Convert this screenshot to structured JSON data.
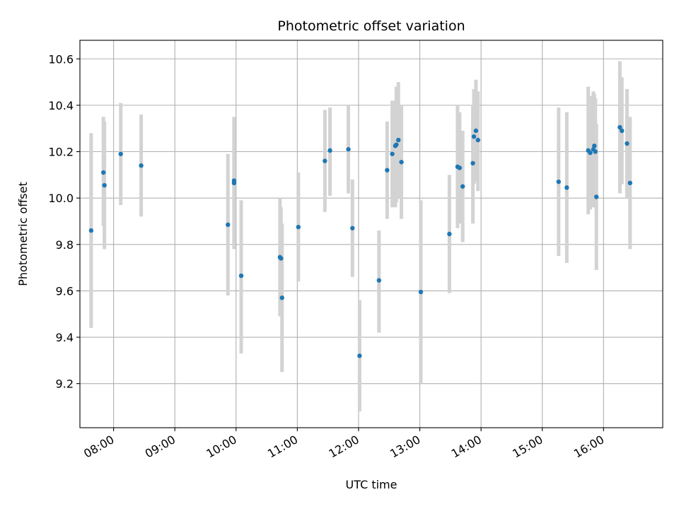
{
  "chart_data": {
    "type": "scatter",
    "title": "Photometric offset variation",
    "xlabel": "UTC time",
    "ylabel": "Photometric offset",
    "xlim": [
      "07:27",
      "16:58"
    ],
    "ylim": [
      9.01,
      10.68
    ],
    "x_ticks": [
      "08:00",
      "09:00",
      "10:00",
      "11:00",
      "12:00",
      "13:00",
      "14:00",
      "15:00",
      "16:00"
    ],
    "y_ticks": [
      9.2,
      9.4,
      9.6,
      9.8,
      10.0,
      10.2,
      10.4,
      10.6
    ],
    "grid": true,
    "point_color": "#1f77b4",
    "errorbar_color": "#d3d3d3",
    "points": [
      {
        "x": "07:38",
        "y": 9.86,
        "ylow": 9.44,
        "yhigh": 10.28
      },
      {
        "x": "07:50",
        "y": 10.11,
        "ylow": 9.88,
        "yhigh": 10.35
      },
      {
        "x": "07:51",
        "y": 10.055,
        "ylow": 9.78,
        "yhigh": 10.33
      },
      {
        "x": "08:07",
        "y": 10.19,
        "ylow": 9.97,
        "yhigh": 10.41
      },
      {
        "x": "08:27",
        "y": 10.14,
        "ylow": 9.92,
        "yhigh": 10.36
      },
      {
        "x": "09:52",
        "y": 9.885,
        "ylow": 9.58,
        "yhigh": 10.19
      },
      {
        "x": "09:58",
        "y": 10.065,
        "ylow": 9.78,
        "yhigh": 10.34
      },
      {
        "x": "09:58",
        "y": 10.075,
        "ylow": 9.81,
        "yhigh": 10.35
      },
      {
        "x": "10:05",
        "y": 9.665,
        "ylow": 9.33,
        "yhigh": 9.99
      },
      {
        "x": "10:43",
        "y": 9.745,
        "ylow": 9.49,
        "yhigh": 10.0
      },
      {
        "x": "10:44",
        "y": 9.74,
        "ylow": 9.52,
        "yhigh": 9.96
      },
      {
        "x": "10:45",
        "y": 9.57,
        "ylow": 9.25,
        "yhigh": 9.89
      },
      {
        "x": "11:01",
        "y": 9.875,
        "ylow": 9.64,
        "yhigh": 10.11
      },
      {
        "x": "11:27",
        "y": 10.16,
        "ylow": 9.94,
        "yhigh": 10.38
      },
      {
        "x": "11:32",
        "y": 10.205,
        "ylow": 10.01,
        "yhigh": 10.39
      },
      {
        "x": "11:50",
        "y": 10.21,
        "ylow": 10.02,
        "yhigh": 10.4
      },
      {
        "x": "11:54",
        "y": 9.87,
        "ylow": 9.66,
        "yhigh": 10.08
      },
      {
        "x": "12:01",
        "y": 9.32,
        "ylow": 9.08,
        "yhigh": 9.56
      },
      {
        "x": "12:20",
        "y": 9.645,
        "ylow": 9.42,
        "yhigh": 9.86
      },
      {
        "x": "12:28",
        "y": 10.12,
        "ylow": 9.91,
        "yhigh": 10.33
      },
      {
        "x": "12:33",
        "y": 10.19,
        "ylow": 9.96,
        "yhigh": 10.42
      },
      {
        "x": "12:36",
        "y": 10.225,
        "ylow": 9.96,
        "yhigh": 10.42
      },
      {
        "x": "12:37",
        "y": 10.23,
        "ylow": 9.98,
        "yhigh": 10.48
      },
      {
        "x": "12:39",
        "y": 10.25,
        "ylow": 10.0,
        "yhigh": 10.5
      },
      {
        "x": "12:42",
        "y": 10.155,
        "ylow": 9.91,
        "yhigh": 10.4
      },
      {
        "x": "13:01",
        "y": 9.595,
        "ylow": 9.2,
        "yhigh": 9.99
      },
      {
        "x": "13:29",
        "y": 9.845,
        "ylow": 9.59,
        "yhigh": 10.1
      },
      {
        "x": "13:37",
        "y": 10.135,
        "ylow": 9.87,
        "yhigh": 10.4
      },
      {
        "x": "13:39",
        "y": 10.13,
        "ylow": 9.89,
        "yhigh": 10.37
      },
      {
        "x": "13:42",
        "y": 10.05,
        "ylow": 9.81,
        "yhigh": 10.29
      },
      {
        "x": "13:52",
        "y": 10.15,
        "ylow": 9.89,
        "yhigh": 10.4
      },
      {
        "x": "13:53",
        "y": 10.265,
        "ylow": 10.06,
        "yhigh": 10.47
      },
      {
        "x": "13:55",
        "y": 10.29,
        "ylow": 10.07,
        "yhigh": 10.51
      },
      {
        "x": "13:57",
        "y": 10.25,
        "ylow": 10.03,
        "yhigh": 10.46
      },
      {
        "x": "15:16",
        "y": 10.07,
        "ylow": 9.75,
        "yhigh": 10.39
      },
      {
        "x": "15:24",
        "y": 10.045,
        "ylow": 9.72,
        "yhigh": 10.37
      },
      {
        "x": "15:45",
        "y": 10.205,
        "ylow": 9.93,
        "yhigh": 10.48
      },
      {
        "x": "15:47",
        "y": 10.195,
        "ylow": 9.95,
        "yhigh": 10.44
      },
      {
        "x": "15:50",
        "y": 10.21,
        "ylow": 9.96,
        "yhigh": 10.46
      },
      {
        "x": "15:51",
        "y": 10.225,
        "ylow": 9.99,
        "yhigh": 10.45
      },
      {
        "x": "15:52",
        "y": 10.2,
        "ylow": 9.97,
        "yhigh": 10.43
      },
      {
        "x": "15:53",
        "y": 10.005,
        "ylow": 9.69,
        "yhigh": 10.32
      },
      {
        "x": "16:16",
        "y": 10.305,
        "ylow": 10.02,
        "yhigh": 10.59
      },
      {
        "x": "16:18",
        "y": 10.29,
        "ylow": 10.06,
        "yhigh": 10.52
      },
      {
        "x": "16:23",
        "y": 10.235,
        "ylow": 10.0,
        "yhigh": 10.47
      },
      {
        "x": "16:26",
        "y": 10.065,
        "ylow": 9.78,
        "yhigh": 10.35
      }
    ]
  }
}
